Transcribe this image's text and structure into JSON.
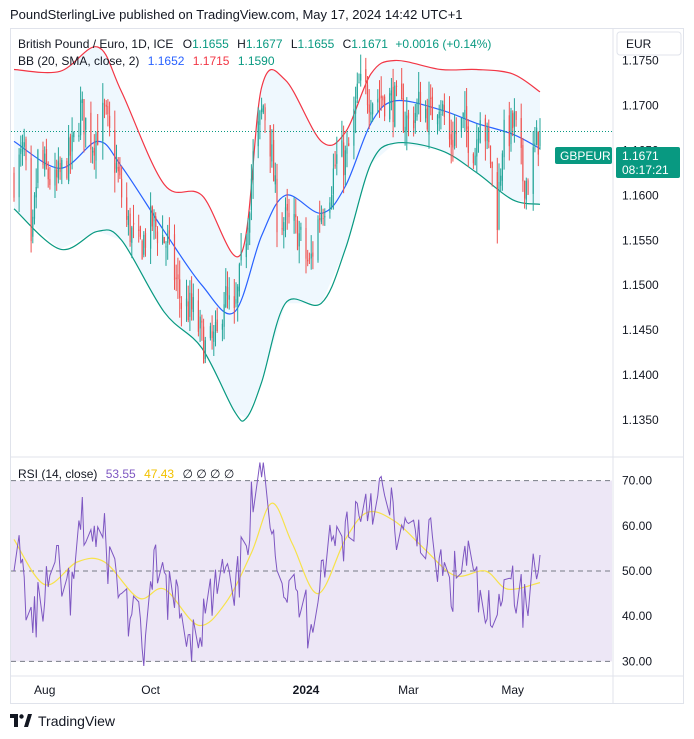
{
  "publish_line": "PoundSterlingLive published on TradingView.com, May 17, 2024 14:42 UTC+1",
  "brand": "TradingView",
  "currency_label": "EUR",
  "legend": {
    "symbol": "British Pound / Euro, 1D, ICE",
    "o_label": "O",
    "o_value": "1.1655",
    "h_label": "H",
    "h_value": "1.1677",
    "l_label": "L",
    "l_value": "1.1655",
    "c_label": "C",
    "c_value": "1.1671",
    "change": "+0.0016 (+0.14%)",
    "bb_label": "BB (20, SMA, close, 2)",
    "bb_basis": "1.1652",
    "bb_upper": "1.1715",
    "bb_lower": "1.1590",
    "rsi_label": "RSI (14, close)",
    "rsi_value": "53.55",
    "rsi_ma_value": "47.43",
    "rsi_extra": "∅ ∅ ∅ ∅"
  },
  "price_tag": {
    "symbol": "GBPEUR",
    "price": "1.1671",
    "countdown": "08:17:21"
  },
  "colors": {
    "up": "#26a69a",
    "down": "#ef5350",
    "bb_upper": "#f23645",
    "bb_lower": "#089981",
    "bb_basis": "#2962ff",
    "rsi": "#7e57c2",
    "rsi_ma": "#f7e24a",
    "rsi_band": "#ede7f6"
  },
  "chart_data": [
    {
      "type": "candlestick",
      "title": "British Pound / Euro, 1D, ICE",
      "ylim": [
        1.131,
        1.1785
      ],
      "y_ticks": [
        "1.1750",
        "1.1700",
        "1.1650",
        "1.1600",
        "1.1550",
        "1.1500",
        "1.1450",
        "1.1400",
        "1.1350"
      ],
      "x_ticks": [
        "Aug",
        "Oct",
        "2024",
        "Mar",
        "May"
      ],
      "anchors": [
        {
          "date": "2023-07-14",
          "close": 1.162
        },
        {
          "date": "2023-07-20",
          "close": 1.165
        },
        {
          "date": "2023-07-24",
          "close": 1.153
        },
        {
          "date": "2023-07-28",
          "close": 1.164
        },
        {
          "date": "2023-08-07",
          "close": 1.161
        },
        {
          "date": "2023-08-17",
          "close": 1.165
        },
        {
          "date": "2023-08-22",
          "close": 1.1695
        },
        {
          "date": "2023-08-29",
          "close": 1.166
        },
        {
          "date": "2023-09-05",
          "close": 1.169
        },
        {
          "date": "2023-09-12",
          "close": 1.163
        },
        {
          "date": "2023-09-18",
          "close": 1.157
        },
        {
          "date": "2023-09-25",
          "close": 1.154
        },
        {
          "date": "2023-10-03",
          "close": 1.157
        },
        {
          "date": "2023-10-12",
          "close": 1.1545
        },
        {
          "date": "2023-10-20",
          "close": 1.148
        },
        {
          "date": "2023-10-27",
          "close": 1.147
        },
        {
          "date": "2023-11-03",
          "close": 1.143
        },
        {
          "date": "2023-11-10",
          "close": 1.144
        },
        {
          "date": "2023-11-14",
          "close": 1.149
        },
        {
          "date": "2023-11-20",
          "close": 1.146
        },
        {
          "date": "2023-11-27",
          "close": 1.156
        },
        {
          "date": "2023-12-01",
          "close": 1.164
        },
        {
          "date": "2023-12-07",
          "close": 1.17
        },
        {
          "date": "2023-12-11",
          "close": 1.166
        },
        {
          "date": "2023-12-15",
          "close": 1.158
        },
        {
          "date": "2023-12-20",
          "close": 1.157
        },
        {
          "date": "2023-12-27",
          "close": 1.156
        },
        {
          "date": "2024-01-03",
          "close": 1.152
        },
        {
          "date": "2024-01-09",
          "close": 1.158
        },
        {
          "date": "2024-01-15",
          "close": 1.161
        },
        {
          "date": "2024-01-19",
          "close": 1.164
        },
        {
          "date": "2024-01-25",
          "close": 1.164
        },
        {
          "date": "2024-02-01",
          "close": 1.172
        },
        {
          "date": "2024-02-09",
          "close": 1.171
        },
        {
          "date": "2024-02-15",
          "close": 1.171
        },
        {
          "date": "2024-02-20",
          "close": 1.1705
        },
        {
          "date": "2024-02-23",
          "close": 1.17
        },
        {
          "date": "2024-03-01",
          "close": 1.168
        },
        {
          "date": "2024-03-07",
          "close": 1.17
        },
        {
          "date": "2024-03-14",
          "close": 1.169
        },
        {
          "date": "2024-03-19",
          "close": 1.171
        },
        {
          "date": "2024-03-25",
          "close": 1.166
        },
        {
          "date": "2024-04-02",
          "close": 1.168
        },
        {
          "date": "2024-04-09",
          "close": 1.165
        },
        {
          "date": "2024-04-12",
          "close": 1.17
        },
        {
          "date": "2024-04-18",
          "close": 1.164
        },
        {
          "date": "2024-04-22",
          "close": 1.158
        },
        {
          "date": "2024-04-25",
          "close": 1.166
        },
        {
          "date": "2024-05-02",
          "close": 1.168
        },
        {
          "date": "2024-05-07",
          "close": 1.162
        },
        {
          "date": "2024-05-10",
          "close": 1.1615
        },
        {
          "date": "2024-05-14",
          "close": 1.165
        },
        {
          "date": "2024-05-17",
          "close": 1.1671
        }
      ],
      "bollinger": {
        "upper": [
          {
            "date": "2023-07-14",
            "value": 1.174
          },
          {
            "date": "2023-08-10",
            "value": 1.1738
          },
          {
            "date": "2023-09-01",
            "value": 1.1765
          },
          {
            "date": "2023-09-15",
            "value": 1.1715
          },
          {
            "date": "2023-10-10",
            "value": 1.1612
          },
          {
            "date": "2023-11-01",
            "value": 1.16
          },
          {
            "date": "2023-11-24",
            "value": 1.1535
          },
          {
            "date": "2023-12-06",
            "value": 1.172
          },
          {
            "date": "2023-12-20",
            "value": 1.1728
          },
          {
            "date": "2024-01-10",
            "value": 1.166
          },
          {
            "date": "2024-01-24",
            "value": 1.167
          },
          {
            "date": "2024-02-08",
            "value": 1.1735
          },
          {
            "date": "2024-02-22",
            "value": 1.175
          },
          {
            "date": "2024-03-20",
            "value": 1.174
          },
          {
            "date": "2024-04-10",
            "value": 1.174
          },
          {
            "date": "2024-05-01",
            "value": 1.1735
          },
          {
            "date": "2024-05-17",
            "value": 1.1715
          }
        ],
        "basis": [
          {
            "date": "2023-07-14",
            "value": 1.166
          },
          {
            "date": "2023-08-10",
            "value": 1.163
          },
          {
            "date": "2023-09-01",
            "value": 1.166
          },
          {
            "date": "2023-09-15",
            "value": 1.1632
          },
          {
            "date": "2023-10-10",
            "value": 1.156
          },
          {
            "date": "2023-11-01",
            "value": 1.15
          },
          {
            "date": "2023-11-20",
            "value": 1.147
          },
          {
            "date": "2023-12-06",
            "value": 1.1555
          },
          {
            "date": "2023-12-20",
            "value": 1.16
          },
          {
            "date": "2024-01-10",
            "value": 1.158
          },
          {
            "date": "2024-01-24",
            "value": 1.161
          },
          {
            "date": "2024-02-08",
            "value": 1.168
          },
          {
            "date": "2024-02-22",
            "value": 1.1705
          },
          {
            "date": "2024-03-20",
            "value": 1.1695
          },
          {
            "date": "2024-04-10",
            "value": 1.168
          },
          {
            "date": "2024-05-01",
            "value": 1.1668
          },
          {
            "date": "2024-05-17",
            "value": 1.1652
          }
        ],
        "lower": [
          {
            "date": "2023-07-14",
            "value": 1.1585
          },
          {
            "date": "2023-08-10",
            "value": 1.154
          },
          {
            "date": "2023-09-01",
            "value": 1.156
          },
          {
            "date": "2023-09-15",
            "value": 1.155
          },
          {
            "date": "2023-10-10",
            "value": 1.147
          },
          {
            "date": "2023-11-01",
            "value": 1.143
          },
          {
            "date": "2023-11-20",
            "value": 1.136
          },
          {
            "date": "2023-11-27",
            "value": 1.1352
          },
          {
            "date": "2023-12-06",
            "value": 1.1392
          },
          {
            "date": "2023-12-20",
            "value": 1.148
          },
          {
            "date": "2024-01-10",
            "value": 1.148
          },
          {
            "date": "2024-01-24",
            "value": 1.154
          },
          {
            "date": "2024-02-08",
            "value": 1.1635
          },
          {
            "date": "2024-02-22",
            "value": 1.1658
          },
          {
            "date": "2024-03-20",
            "value": 1.165
          },
          {
            "date": "2024-04-10",
            "value": 1.1625
          },
          {
            "date": "2024-05-01",
            "value": 1.1595
          },
          {
            "date": "2024-05-17",
            "value": 1.159
          }
        ]
      }
    },
    {
      "type": "line",
      "title": "RSI (14, close)",
      "ylim": [
        27,
        75
      ],
      "y_ticks": [
        "70.00",
        "60.00",
        "50.00",
        "40.00",
        "30.00"
      ],
      "levels": [
        70,
        50,
        30
      ],
      "series": [
        {
          "name": "RSI",
          "points": [
            {
              "date": "2023-07-14",
              "value": 57
            },
            {
              "date": "2023-07-25",
              "value": 38
            },
            {
              "date": "2023-08-07",
              "value": 50
            },
            {
              "date": "2023-08-17",
              "value": 44
            },
            {
              "date": "2023-08-22",
              "value": 60
            },
            {
              "date": "2023-09-05",
              "value": 56
            },
            {
              "date": "2023-09-12",
              "value": 48
            },
            {
              "date": "2023-09-20",
              "value": 40
            },
            {
              "date": "2023-09-28",
              "value": 34
            },
            {
              "date": "2023-10-05",
              "value": 50
            },
            {
              "date": "2023-10-12",
              "value": 46
            },
            {
              "date": "2023-10-20",
              "value": 40
            },
            {
              "date": "2023-10-27",
              "value": 36
            },
            {
              "date": "2023-11-03",
              "value": 40
            },
            {
              "date": "2023-11-14",
              "value": 50
            },
            {
              "date": "2023-11-20",
              "value": 42
            },
            {
              "date": "2023-11-29",
              "value": 62
            },
            {
              "date": "2023-12-07",
              "value": 73
            },
            {
              "date": "2023-12-12",
              "value": 64
            },
            {
              "date": "2023-12-18",
              "value": 48
            },
            {
              "date": "2024-01-03",
              "value": 39
            },
            {
              "date": "2024-01-12",
              "value": 54
            },
            {
              "date": "2024-01-22",
              "value": 58
            },
            {
              "date": "2024-02-01",
              "value": 64
            },
            {
              "date": "2024-02-12",
              "value": 68
            },
            {
              "date": "2024-02-22",
              "value": 61
            },
            {
              "date": "2024-03-01",
              "value": 56
            },
            {
              "date": "2024-03-08",
              "value": 60
            },
            {
              "date": "2024-03-18",
              "value": 52
            },
            {
              "date": "2024-03-25",
              "value": 45
            },
            {
              "date": "2024-04-04",
              "value": 54
            },
            {
              "date": "2024-04-12",
              "value": 42
            },
            {
              "date": "2024-04-22",
              "value": 36
            },
            {
              "date": "2024-04-26",
              "value": 54
            },
            {
              "date": "2024-05-08",
              "value": 41
            },
            {
              "date": "2024-05-17",
              "value": 53.55
            }
          ]
        },
        {
          "name": "RSI-based MA",
          "points": [
            {
              "date": "2023-07-14",
              "value": 57
            },
            {
              "date": "2023-08-01",
              "value": 47
            },
            {
              "date": "2023-08-20",
              "value": 52
            },
            {
              "date": "2023-09-05",
              "value": 52
            },
            {
              "date": "2023-09-25",
              "value": 44
            },
            {
              "date": "2023-10-10",
              "value": 46
            },
            {
              "date": "2023-10-30",
              "value": 38
            },
            {
              "date": "2023-11-15",
              "value": 43
            },
            {
              "date": "2023-11-30",
              "value": 54
            },
            {
              "date": "2023-12-12",
              "value": 65
            },
            {
              "date": "2023-12-24",
              "value": 56
            },
            {
              "date": "2024-01-08",
              "value": 45
            },
            {
              "date": "2024-01-24",
              "value": 57
            },
            {
              "date": "2024-02-06",
              "value": 63
            },
            {
              "date": "2024-02-22",
              "value": 61
            },
            {
              "date": "2024-03-10",
              "value": 55
            },
            {
              "date": "2024-03-28",
              "value": 49
            },
            {
              "date": "2024-04-15",
              "value": 50
            },
            {
              "date": "2024-04-28",
              "value": 46
            },
            {
              "date": "2024-05-17",
              "value": 47.43
            }
          ]
        }
      ]
    }
  ]
}
